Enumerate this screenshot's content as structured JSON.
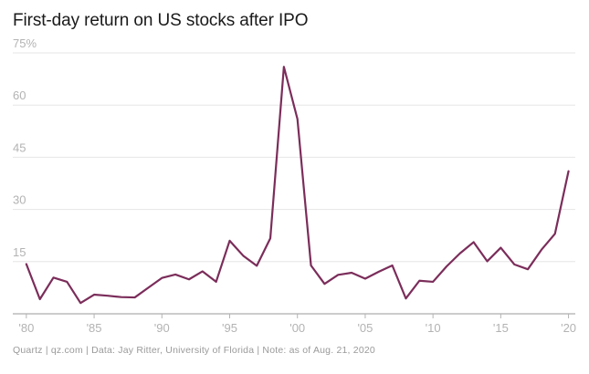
{
  "chart_data": {
    "type": "line",
    "title": "First-day return on US stocks after IPO",
    "xlabel": "",
    "ylabel": "",
    "x": [
      1980,
      1981,
      1982,
      1983,
      1984,
      1985,
      1986,
      1987,
      1988,
      1989,
      1990,
      1991,
      1992,
      1993,
      1994,
      1995,
      1996,
      1997,
      1998,
      1999,
      2000,
      2001,
      2002,
      2003,
      2004,
      2005,
      2006,
      2007,
      2008,
      2009,
      2010,
      2011,
      2012,
      2013,
      2014,
      2015,
      2016,
      2017,
      2018,
      2019,
      2020
    ],
    "series": [
      {
        "name": "First-day return",
        "color": "#7b2d5a",
        "values": [
          14.3,
          4.2,
          10.4,
          9.2,
          3.1,
          5.5,
          5.2,
          4.8,
          4.7,
          7.5,
          10.3,
          11.3,
          9.9,
          12.2,
          9.2,
          21.0,
          16.7,
          13.8,
          21.7,
          71.0,
          56.0,
          13.9,
          8.6,
          11.2,
          11.8,
          10.1,
          12.1,
          13.9,
          4.4,
          9.5,
          9.2,
          13.6,
          17.4,
          20.6,
          15.1,
          19.0,
          14.2,
          12.8,
          18.4,
          23.0,
          41.0
        ]
      }
    ],
    "ylim": [
      0,
      75
    ],
    "xlim": [
      1979,
      2020.5
    ],
    "yticks": [
      15,
      30,
      45,
      60,
      75
    ],
    "ytick_labels": [
      "15",
      "30",
      "45",
      "60",
      "75%"
    ],
    "xticks": [
      1980,
      1985,
      1990,
      1995,
      2000,
      2005,
      2010,
      2015,
      2020
    ],
    "xtick_labels": [
      "'80",
      "'85",
      "'90",
      "'95",
      "'00",
      "'05",
      "'10",
      "'15",
      "'20"
    ],
    "grid": true
  },
  "footer": {
    "text": "Quartz | qz.com | Data: Jay Ritter, University of Florida | Note: as of Aug. 21, 2020"
  }
}
